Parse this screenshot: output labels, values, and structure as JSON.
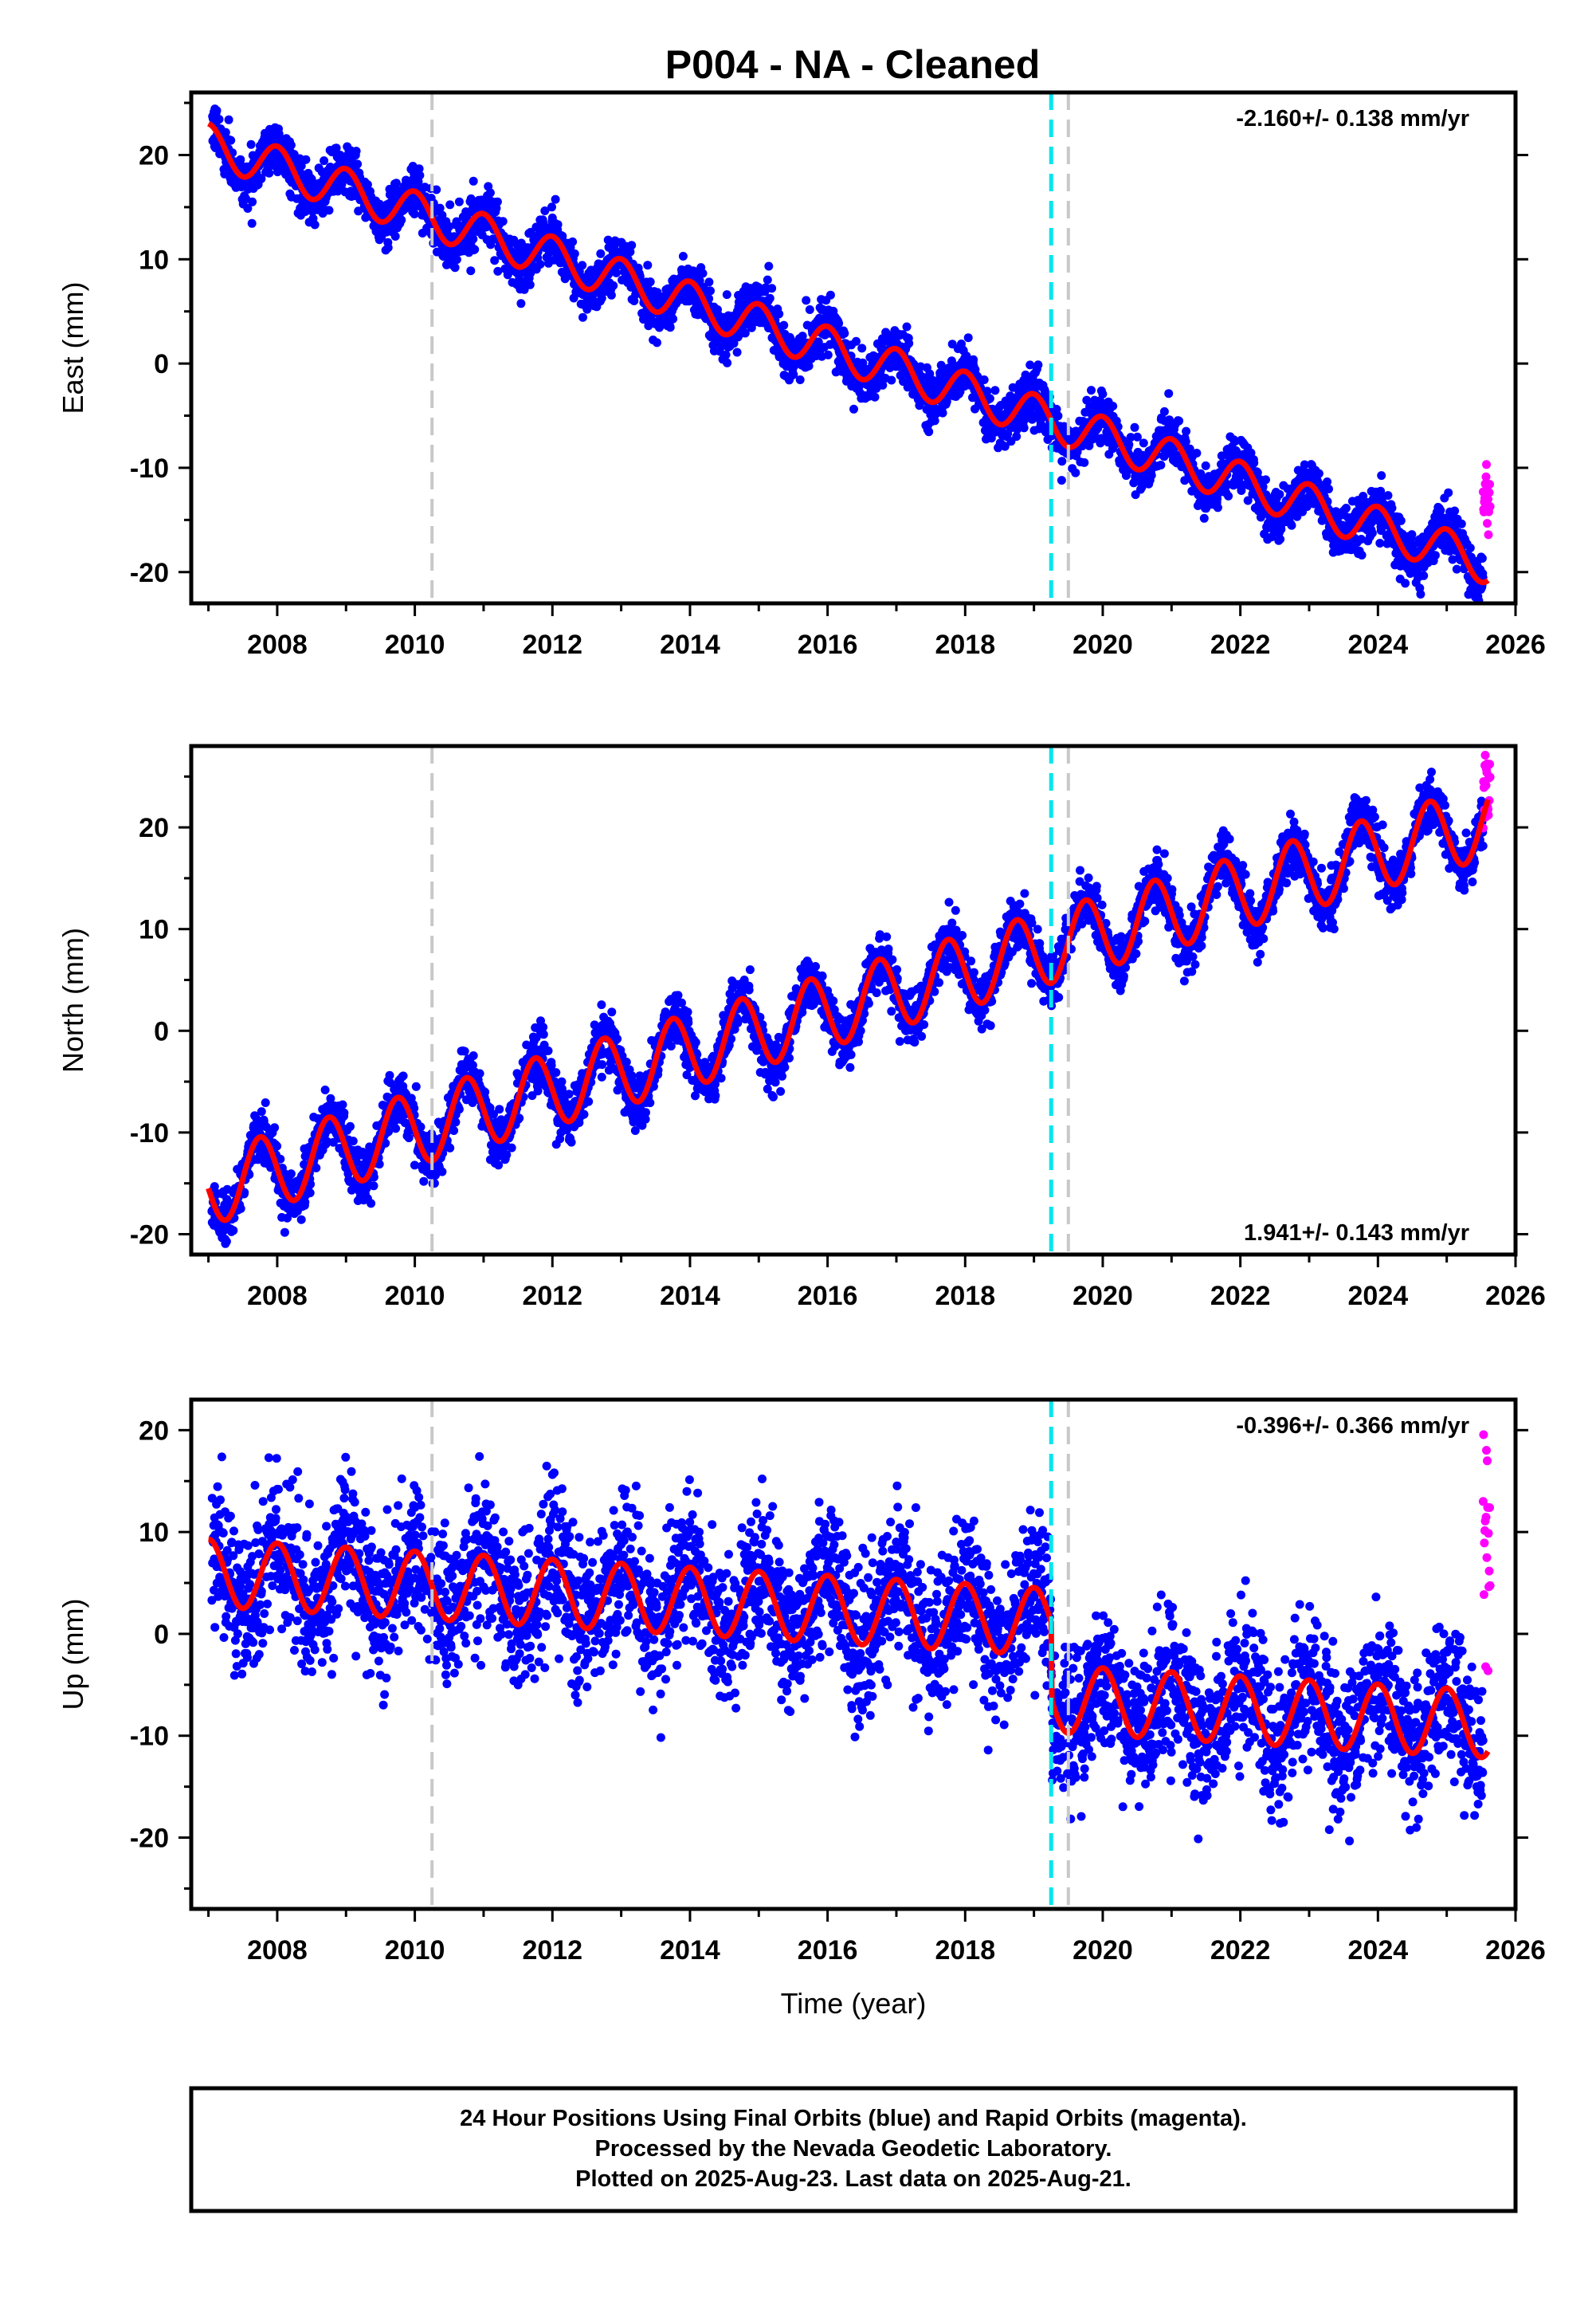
{
  "title": "P004  - NA - Cleaned",
  "colors": {
    "final_orbits": "#0000ff",
    "rapid_orbits": "#ff00ff",
    "model_fit": "#ff0000",
    "equipment_change": "#00e5ee",
    "other_event": "#c8c8c8"
  },
  "chart_data": [
    {
      "type": "scatter",
      "component": "east",
      "ylabel": "East (mm)",
      "xlabel": "",
      "xlim": [
        2006.75,
        2026.0
      ],
      "ylim": [
        -23,
        26
      ],
      "xticks": [
        2008,
        2010,
        2012,
        2014,
        2016,
        2018,
        2020,
        2022,
        2024,
        2026
      ],
      "yticks": [
        -20,
        -10,
        0,
        10,
        20
      ],
      "rate_label": "-2.160+/- 0.138 mm/yr",
      "rate_position": "top-right",
      "trend": {
        "t0": 2007.0,
        "y0": 21.0,
        "rate": -2.16,
        "annual_amplitude": 2.0,
        "annual_phase": 0.0,
        "scatter": 1.2
      },
      "offsets": [
        {
          "time": 2019.25,
          "size": 0
        }
      ],
      "rapid_range": [
        2025.53,
        2025.63
      ],
      "rapid_values_range": [
        -17.5,
        -9.5
      ],
      "vlines": [
        {
          "x": 2010.25,
          "kind": "other_event"
        },
        {
          "x": 2019.25,
          "kind": "equipment_change"
        },
        {
          "x": 2019.5,
          "kind": "other_event"
        }
      ],
      "grid": false
    },
    {
      "type": "scatter",
      "component": "north",
      "ylabel": "North (mm)",
      "xlabel": "",
      "xlim": [
        2006.75,
        2026.0
      ],
      "ylim": [
        -22,
        28
      ],
      "xticks": [
        2008,
        2010,
        2012,
        2014,
        2016,
        2018,
        2020,
        2022,
        2024,
        2026
      ],
      "yticks": [
        -20,
        -10,
        0,
        10,
        20
      ],
      "rate_label": "1.941+/- 0.143 mm/yr",
      "rate_position": "bottom-right",
      "trend": {
        "t0": 2007.0,
        "y0": -15.5,
        "rate": 1.941,
        "annual_amplitude": 3.6,
        "annual_phase": 1.57,
        "scatter": 1.3
      },
      "offsets": [],
      "rapid_range": [
        2025.53,
        2025.63
      ],
      "rapid_values_range": [
        19.5,
        27.5
      ],
      "vlines": [
        {
          "x": 2010.25,
          "kind": "other_event"
        },
        {
          "x": 2019.25,
          "kind": "equipment_change"
        },
        {
          "x": 2019.5,
          "kind": "other_event"
        }
      ],
      "grid": false
    },
    {
      "type": "scatter",
      "component": "up",
      "ylabel": "Up (mm)",
      "xlabel": "Time (year)",
      "xlim": [
        2006.75,
        2026.0
      ],
      "ylim": [
        -27,
        23
      ],
      "xticks": [
        2008,
        2010,
        2012,
        2014,
        2016,
        2018,
        2020,
        2022,
        2024,
        2026
      ],
      "yticks": [
        -20,
        -10,
        0,
        10,
        20
      ],
      "rate_label": "-0.396+/- 0.366 mm/yr",
      "rate_position": "top-right",
      "trend": {
        "t0": 2007.0,
        "y0": 6.0,
        "rate": -0.396,
        "annual_amplitude": 3.3,
        "annual_phase": 0.0,
        "scatter": 3.6
      },
      "offsets": [
        {
          "time": 2019.25,
          "size": -7.5
        }
      ],
      "rapid_range": [
        2025.53,
        2025.63
      ],
      "rapid_values_range": [
        -5.0,
        22.0
      ],
      "vlines": [
        {
          "x": 2010.25,
          "kind": "other_event"
        },
        {
          "x": 2019.25,
          "kind": "equipment_change"
        },
        {
          "x": 2019.5,
          "kind": "other_event"
        }
      ],
      "grid": false
    }
  ],
  "footer": {
    "line1": "24 Hour Positions Using Final Orbits (blue) and Rapid Orbits (magenta).",
    "line2": "Processed by the Nevada Geodetic Laboratory.",
    "line3": "Plotted on 2025-Aug-23. Last data on 2025-Aug-21."
  }
}
